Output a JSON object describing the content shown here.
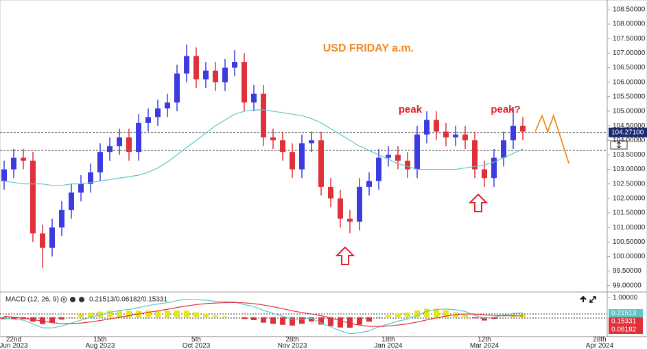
{
  "chart_data": {
    "type": "candlestick",
    "title": "USD FRIDAY a.m.",
    "annotations": [
      "peak",
      "peak?"
    ],
    "categories": [
      null,
      "22nd\nJun 2023",
      null,
      null,
      null,
      null,
      null,
      null,
      null,
      null,
      "15th\nAug 2023",
      null,
      null,
      null,
      null,
      null,
      null,
      null,
      null,
      null,
      "5th\nOct 2023",
      null,
      null,
      null,
      null,
      null,
      null,
      null,
      null,
      null,
      "28th\nNov 2023",
      null,
      null,
      null,
      null,
      null,
      null,
      null,
      null,
      null,
      "18th\nJan 2024",
      null,
      null,
      null,
      null,
      null,
      null,
      null,
      null,
      null,
      "12th\nMar 2024",
      null,
      null,
      null,
      null,
      null,
      null,
      null,
      null,
      null,
      null,
      null,
      "28th\nApr 2024"
    ],
    "ohlc": {
      "up_color": "#3b3bdf",
      "down_color": "#e0303a",
      "open": [
        102.6,
        103.0,
        103.4,
        103.3,
        100.8,
        100.3,
        101.0,
        101.6,
        102.2,
        102.5,
        102.9,
        103.6,
        103.8,
        104.1,
        103.6,
        104.6,
        104.8,
        105.1,
        105.3,
        106.3,
        106.9,
        106.1,
        106.4,
        106.0,
        106.5,
        106.7,
        105.3,
        105.6,
        104.1,
        104.0,
        103.6,
        103.0,
        103.9,
        104.0,
        102.4,
        102.0,
        101.3,
        101.2,
        102.4,
        102.6,
        103.4,
        103.5,
        103.3,
        103.0,
        104.2,
        104.7,
        104.3,
        104.1,
        104.2,
        104.0,
        103.0,
        102.7,
        103.4,
        104.0,
        104.5
      ],
      "high": [
        103.3,
        103.7,
        103.7,
        103.6,
        101.1,
        101.3,
        101.9,
        102.5,
        102.8,
        103.2,
        103.9,
        104.1,
        104.4,
        104.4,
        104.9,
        105.1,
        105.4,
        105.6,
        106.6,
        107.3,
        107.2,
        106.7,
        106.7,
        106.8,
        107.1,
        107.0,
        105.9,
        105.9,
        104.4,
        104.3,
        103.9,
        104.2,
        104.3,
        104.3,
        102.7,
        102.3,
        101.6,
        102.7,
        102.9,
        103.7,
        103.8,
        103.8,
        103.6,
        104.5,
        105.0,
        105.0,
        104.6,
        104.5,
        104.5,
        104.3,
        103.3,
        103.7,
        104.3,
        105.1,
        104.8
      ],
      "low": [
        102.3,
        102.7,
        103.0,
        100.5,
        99.6,
        100.0,
        100.7,
        101.3,
        101.9,
        102.2,
        102.6,
        103.3,
        103.5,
        103.3,
        103.3,
        104.3,
        104.5,
        104.8,
        105.0,
        106.0,
        105.8,
        105.8,
        105.7,
        105.7,
        106.2,
        105.0,
        105.0,
        103.8,
        103.7,
        103.3,
        102.7,
        102.7,
        103.6,
        102.1,
        101.7,
        101.0,
        100.8,
        100.9,
        102.1,
        102.3,
        103.1,
        103.0,
        102.7,
        102.7,
        103.9,
        104.0,
        103.8,
        103.8,
        103.7,
        102.7,
        102.4,
        102.4,
        103.1,
        103.7,
        104.0
      ],
      "close": [
        103.0,
        103.4,
        103.3,
        100.8,
        100.3,
        101.0,
        101.6,
        102.2,
        102.5,
        102.9,
        103.6,
        103.8,
        104.1,
        103.6,
        104.6,
        104.8,
        105.1,
        105.3,
        106.3,
        106.9,
        106.1,
        106.4,
        106.0,
        106.5,
        106.7,
        105.3,
        105.6,
        104.1,
        104.0,
        103.6,
        103.0,
        103.9,
        104.0,
        102.4,
        102.0,
        101.3,
        101.2,
        102.4,
        102.6,
        103.4,
        103.5,
        103.3,
        103.0,
        104.2,
        104.7,
        104.3,
        104.1,
        104.2,
        104.0,
        103.0,
        102.7,
        103.4,
        104.0,
        104.5,
        104.3
      ]
    },
    "ma": {
      "color": "#5cc6c6",
      "values": [
        102.6,
        102.55,
        102.5,
        102.5,
        102.5,
        102.45,
        102.45,
        102.5,
        102.5,
        102.55,
        102.6,
        102.65,
        102.7,
        102.75,
        102.8,
        102.9,
        103.05,
        103.25,
        103.5,
        103.75,
        104.0,
        104.25,
        104.5,
        104.7,
        104.9,
        105.0,
        105.05,
        105.05,
        105.0,
        104.95,
        104.9,
        104.85,
        104.75,
        104.6,
        104.4,
        104.2,
        104.0,
        103.8,
        103.65,
        103.5,
        103.35,
        103.2,
        103.1,
        103.0,
        103.0,
        103.0,
        103.0,
        103.0,
        103.05,
        103.1,
        103.15,
        103.25,
        103.4,
        103.55,
        103.7
      ]
    },
    "projection": {
      "color": "#f08a24",
      "x": [
        55.3,
        56.0,
        56.6,
        57.2,
        58.8
      ],
      "values": [
        104.3,
        104.85,
        104.3,
        104.85,
        103.2
      ]
    },
    "levels": [
      {
        "value": 104.271,
        "label": "104.27100"
      },
      103.65
    ],
    "ylim": [
      98.78,
      108.83
    ],
    "yticks": [
      {
        "value": 108.5,
        "label": "108.50000"
      },
      {
        "value": 108,
        "label": "108.00000"
      },
      {
        "value": 107.5,
        "label": "107.50000"
      },
      {
        "value": 107,
        "label": "107.00000"
      },
      {
        "value": 106.5,
        "label": "106.50000"
      },
      {
        "value": 106,
        "label": "106.00000"
      },
      {
        "value": 105.5,
        "label": "105.50000"
      },
      {
        "value": 105,
        "label": "105.00000"
      },
      {
        "value": 104.5,
        "label": "104.50000"
      },
      {
        "value": 104,
        "label": "104.00000"
      },
      {
        "value": 103.5,
        "label": "103.50000"
      },
      {
        "value": 103,
        "label": "103.00000"
      },
      {
        "value": 102.5,
        "label": "102.50000"
      },
      {
        "value": 102,
        "label": "102.00000"
      },
      {
        "value": 101.5,
        "label": "101.50000"
      },
      {
        "value": 101,
        "label": "101.00000"
      },
      {
        "value": 100.5,
        "label": "100.50000"
      },
      {
        "value": 100,
        "label": "100.00000"
      },
      {
        "value": 99.5,
        "label": "99.50000"
      },
      {
        "value": 99,
        "label": "99.00000"
      }
    ],
    "macd": {
      "title": "MACD (12, 26, 9)",
      "readout": "0.21513/0.06182/0.15331",
      "ylim": [
        -1,
        1.3
      ],
      "yticks": [
        {
          "value": 1,
          "label": "1.00000"
        }
      ],
      "macd": {
        "color": "#5cc6c6",
        "values": [
          -0.05,
          -0.1,
          -0.15,
          -0.35,
          -0.55,
          -0.55,
          -0.45,
          -0.3,
          -0.15,
          0.0,
          0.12,
          0.25,
          0.35,
          0.4,
          0.5,
          0.6,
          0.68,
          0.75,
          0.85,
          0.92,
          0.9,
          0.88,
          0.82,
          0.8,
          0.78,
          0.65,
          0.55,
          0.35,
          0.2,
          0.05,
          -0.1,
          -0.1,
          -0.05,
          -0.3,
          -0.5,
          -0.7,
          -0.85,
          -0.8,
          -0.7,
          -0.5,
          -0.35,
          -0.2,
          -0.1,
          0.1,
          0.3,
          0.4,
          0.42,
          0.38,
          0.3,
          0.1,
          -0.05,
          0.0,
          0.1,
          0.2,
          0.21513
        ]
      },
      "signal": {
        "color": "#e0303a",
        "values": [
          0.05,
          0.0,
          -0.05,
          -0.12,
          -0.2,
          -0.28,
          -0.33,
          -0.33,
          -0.3,
          -0.24,
          -0.17,
          -0.09,
          0.0,
          0.08,
          0.17,
          0.25,
          0.33,
          0.41,
          0.5,
          0.58,
          0.65,
          0.7,
          0.73,
          0.75,
          0.76,
          0.74,
          0.7,
          0.63,
          0.54,
          0.44,
          0.33,
          0.24,
          0.17,
          0.08,
          -0.04,
          -0.17,
          -0.31,
          -0.41,
          -0.47,
          -0.48,
          -0.45,
          -0.4,
          -0.34,
          -0.25,
          -0.14,
          -0.03,
          0.06,
          0.13,
          0.17,
          0.16,
          0.12,
          0.09,
          0.08,
          0.08,
          0.06182
        ]
      },
      "histogram": {
        "up_color": "#e6e61c",
        "down_color": "#e0303a",
        "values": [
          -0.1,
          -0.1,
          -0.1,
          -0.23,
          -0.35,
          -0.27,
          -0.12,
          0.03,
          0.15,
          0.24,
          0.29,
          0.34,
          0.35,
          0.32,
          0.33,
          0.35,
          0.35,
          0.34,
          0.35,
          0.34,
          0.25,
          0.18,
          0.09,
          0.05,
          0.02,
          -0.09,
          -0.15,
          -0.28,
          -0.34,
          -0.39,
          -0.43,
          -0.34,
          -0.22,
          -0.38,
          -0.46,
          -0.53,
          -0.54,
          -0.39,
          -0.23,
          -0.02,
          0.1,
          0.2,
          0.24,
          0.35,
          0.44,
          0.43,
          0.36,
          0.25,
          0.13,
          -0.06,
          -0.17,
          -0.09,
          0.02,
          0.12,
          0.15331
        ]
      }
    }
  }
}
